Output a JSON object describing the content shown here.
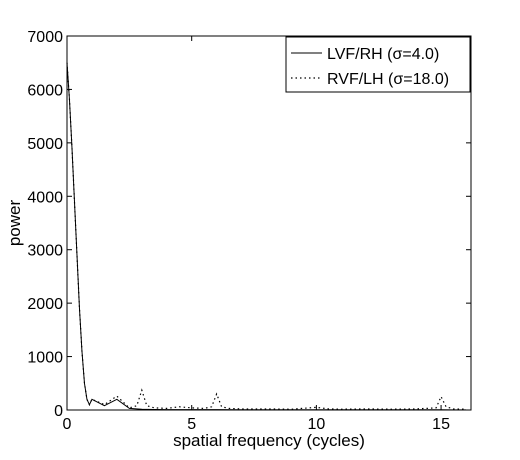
{
  "chart_data": {
    "type": "line",
    "title": "",
    "xlabel": "spatial frequency (cycles)",
    "ylabel": "power",
    "xlim": [
      0,
      16.2
    ],
    "ylim": [
      0,
      7000
    ],
    "xticks": [
      0,
      5,
      10,
      15
    ],
    "yticks": [
      0,
      1000,
      2000,
      3000,
      4000,
      5000,
      6000,
      7000
    ],
    "grid": false,
    "legend_position": "top-right",
    "series": [
      {
        "name": "LVF/RH (σ=4.0)",
        "style": "solid",
        "color": "#000000",
        "x": [
          0,
          0.1,
          0.2,
          0.3,
          0.4,
          0.5,
          0.6,
          0.7,
          0.8,
          0.9,
          1.0,
          1.5,
          2.0,
          2.5,
          3.0,
          3.5,
          4.0,
          5.0,
          6.0,
          7.0,
          8.0,
          10.0,
          12.0,
          14.0,
          15.0,
          15.5,
          16.0
        ],
        "y": [
          6500,
          5800,
          4900,
          3900,
          2900,
          1900,
          1100,
          500,
          200,
          100,
          200,
          80,
          200,
          30,
          15,
          10,
          8,
          8,
          6,
          5,
          5,
          4,
          4,
          4,
          4,
          3,
          3
        ]
      },
      {
        "name": "RVF/LH (σ=18.0)",
        "style": "dotted",
        "color": "#000000",
        "x": [
          0,
          0.1,
          0.2,
          0.3,
          0.4,
          0.5,
          0.6,
          0.7,
          0.8,
          0.9,
          1.0,
          1.5,
          2.0,
          2.5,
          2.8,
          3.0,
          3.2,
          3.5,
          4.0,
          4.5,
          5.0,
          5.5,
          5.8,
          6.0,
          6.2,
          6.5,
          7.0,
          8.0,
          9.0,
          10.0,
          10.5,
          11.0,
          12.0,
          13.0,
          14.0,
          14.8,
          15.0,
          15.2,
          15.5,
          16.0
        ],
        "y": [
          6500,
          5800,
          4900,
          3900,
          2900,
          1900,
          1100,
          500,
          200,
          100,
          200,
          100,
          260,
          40,
          80,
          370,
          80,
          40,
          30,
          60,
          40,
          30,
          60,
          300,
          60,
          30,
          20,
          20,
          15,
          50,
          20,
          15,
          20,
          15,
          20,
          40,
          250,
          60,
          20,
          15
        ]
      }
    ]
  }
}
